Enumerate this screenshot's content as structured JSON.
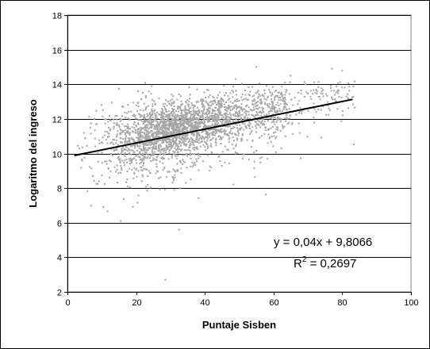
{
  "chart_data": {
    "type": "scatter",
    "title": "",
    "xlabel": "Puntaje Sisben",
    "ylabel": "Logaritmo del ingreso",
    "xlim": [
      0,
      100
    ],
    "ylim": [
      2,
      18
    ],
    "x_ticks": [
      0,
      20,
      40,
      60,
      80,
      100
    ],
    "y_ticks": [
      2,
      4,
      6,
      8,
      10,
      12,
      14,
      16,
      18
    ],
    "x_tick_labels": [
      "0",
      "20",
      "40",
      "60",
      "80",
      "100"
    ],
    "y_tick_labels": [
      "2",
      "4",
      "6",
      "8",
      "10",
      "12",
      "14",
      "16",
      "18"
    ],
    "grid": "horizontal",
    "legend": "none",
    "point_color": "#a6a6a6",
    "trendline_color": "#000000",
    "scatter_cloud": {
      "x_range": [
        1,
        84
      ],
      "x_center": 30,
      "y_center": 11,
      "approx_points": 3000
    },
    "outliers": [
      {
        "x": 28.5,
        "y": 2.7
      },
      {
        "x": 32.5,
        "y": 5.6
      },
      {
        "x": 15.5,
        "y": 6.1
      },
      {
        "x": 10.5,
        "y": 6.9
      },
      {
        "x": 80,
        "y": 14.8
      },
      {
        "x": 77,
        "y": 14.9
      },
      {
        "x": 55,
        "y": 15.0
      },
      {
        "x": 65,
        "y": 14.5
      },
      {
        "x": 49,
        "y": 14.3
      }
    ],
    "trendline": {
      "slope": 0.04,
      "intercept": 9.8066,
      "x_start": 2,
      "x_end": 83
    },
    "equation_text": "y = 0,04x + 9,8066",
    "r2_prefix": "R",
    "r2_superscript": "2",
    "r2_suffix": " = 0,2697"
  }
}
